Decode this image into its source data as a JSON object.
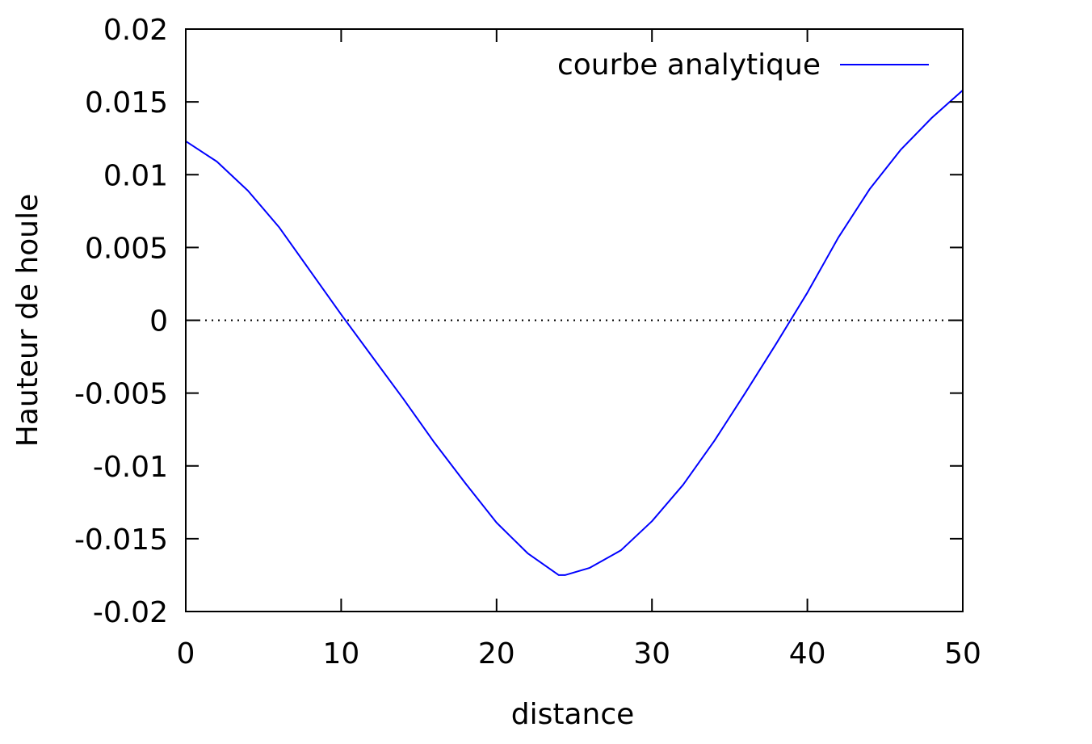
{
  "chart_data": {
    "type": "line",
    "title": "",
    "xlabel": "distance",
    "ylabel": "Hauteur de houle",
    "xlim": [
      0,
      50
    ],
    "ylim": [
      -0.02,
      0.02
    ],
    "xticks": [
      "0",
      "10",
      "20",
      "30",
      "40",
      "50"
    ],
    "yticks": [
      "0.02",
      "0.015",
      "0.01",
      "0.005",
      "0",
      "-0.005",
      "-0.01",
      "-0.015",
      "-0.02"
    ],
    "grid": false,
    "legend_position": "top-right",
    "zero_line": {
      "y": 0,
      "style": "dotted",
      "color": "#000000"
    },
    "series": [
      {
        "name": "courbe analytique",
        "color": "#0000ff",
        "x": [
          0,
          2,
          4,
          6,
          8,
          10,
          12,
          14,
          16,
          18,
          20,
          22,
          24,
          24.4,
          26,
          28,
          30,
          32,
          34,
          36,
          38,
          40,
          42,
          44,
          46,
          48,
          50
        ],
        "y": [
          0.0123,
          0.0109,
          0.0089,
          0.0064,
          0.0034,
          0.0004,
          -0.0025,
          -0.0054,
          -0.0084,
          -0.0112,
          -0.0139,
          -0.016,
          -0.0175,
          -0.0175,
          -0.017,
          -0.0158,
          -0.0138,
          -0.0113,
          -0.0083,
          -0.005,
          -0.0016,
          0.0019,
          0.0057,
          0.009,
          0.0117,
          0.0139,
          0.0158
        ]
      }
    ]
  }
}
